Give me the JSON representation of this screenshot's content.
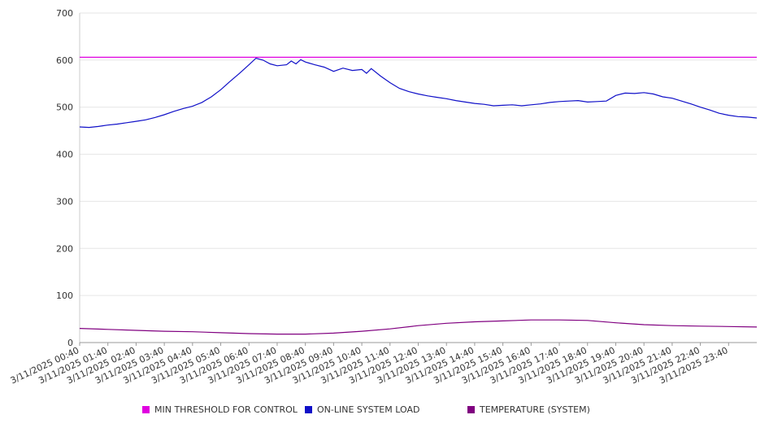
{
  "chart_data": {
    "type": "line",
    "title": "",
    "xlabel": "",
    "ylabel": "",
    "ylim": [
      0,
      700
    ],
    "yticks": [
      "0",
      "100",
      "200",
      "300",
      "400",
      "500",
      "600",
      "700"
    ],
    "grid": true,
    "legend_position": "bottom",
    "x_tick_labels": [
      "3/11/2025 00:40",
      "3/11/2025 01:40",
      "3/11/2025 02:40",
      "3/11/2025 03:40",
      "3/11/2025 04:40",
      "3/11/2025 05:40",
      "3/11/2025 06:40",
      "3/11/2025 07:40",
      "3/11/2025 08:40",
      "3/11/2025 09:40",
      "3/11/2025 10:40",
      "3/11/2025 11:40",
      "3/11/2025 12:40",
      "3/11/2025 13:40",
      "3/11/2025 14:40",
      "3/11/2025 15:40",
      "3/11/2025 16:40",
      "3/11/2025 17:40",
      "3/11/2025 18:40",
      "3/11/2025 19:40",
      "3/11/2025 20:40",
      "3/11/2025 21:40",
      "3/11/2025 22:40",
      "3/11/2025 23:40"
    ],
    "x_range": [
      "3/11/2025 00:40",
      "3/12/2025 00:40"
    ],
    "series": [
      {
        "name": "MIN THRESHOLD FOR CONTROL",
        "color": "#e000e0",
        "points": [
          [
            "3/11/2025 00:40",
            606
          ],
          [
            "3/12/2025 00:40",
            606
          ]
        ]
      },
      {
        "name": "ON-LINE SYSTEM LOAD",
        "color": "#1010c8",
        "points": [
          [
            "3/11/2025 00:40",
            458
          ],
          [
            "3/11/2025 01:00",
            457
          ],
          [
            "3/11/2025 01:20",
            459
          ],
          [
            "3/11/2025 01:40",
            462
          ],
          [
            "3/11/2025 02:00",
            464
          ],
          [
            "3/11/2025 02:20",
            467
          ],
          [
            "3/11/2025 02:40",
            470
          ],
          [
            "3/11/2025 03:00",
            473
          ],
          [
            "3/11/2025 03:20",
            478
          ],
          [
            "3/11/2025 03:40",
            484
          ],
          [
            "3/11/2025 04:00",
            491
          ],
          [
            "3/11/2025 04:20",
            497
          ],
          [
            "3/11/2025 04:40",
            502
          ],
          [
            "3/11/2025 05:00",
            510
          ],
          [
            "3/11/2025 05:20",
            522
          ],
          [
            "3/11/2025 05:40",
            537
          ],
          [
            "3/11/2025 06:00",
            555
          ],
          [
            "3/11/2025 06:20",
            572
          ],
          [
            "3/11/2025 06:40",
            590
          ],
          [
            "3/11/2025 06:55",
            604
          ],
          [
            "3/11/2025 07:10",
            600
          ],
          [
            "3/11/2025 07:25",
            592
          ],
          [
            "3/11/2025 07:40",
            588
          ],
          [
            "3/11/2025 08:00",
            590
          ],
          [
            "3/11/2025 08:10",
            598
          ],
          [
            "3/11/2025 08:20",
            592
          ],
          [
            "3/11/2025 08:30",
            601
          ],
          [
            "3/11/2025 08:40",
            596
          ],
          [
            "3/11/2025 09:00",
            590
          ],
          [
            "3/11/2025 09:20",
            585
          ],
          [
            "3/11/2025 09:40",
            576
          ],
          [
            "3/11/2025 10:00",
            583
          ],
          [
            "3/11/2025 10:20",
            578
          ],
          [
            "3/11/2025 10:40",
            580
          ],
          [
            "3/11/2025 10:50",
            572
          ],
          [
            "3/11/2025 11:00",
            582
          ],
          [
            "3/11/2025 11:20",
            566
          ],
          [
            "3/11/2025 11:40",
            552
          ],
          [
            "3/11/2025 12:00",
            540
          ],
          [
            "3/11/2025 12:20",
            533
          ],
          [
            "3/11/2025 12:40",
            528
          ],
          [
            "3/11/2025 13:00",
            524
          ],
          [
            "3/11/2025 13:20",
            521
          ],
          [
            "3/11/2025 13:40",
            518
          ],
          [
            "3/11/2025 14:00",
            514
          ],
          [
            "3/11/2025 14:20",
            511
          ],
          [
            "3/11/2025 14:40",
            508
          ],
          [
            "3/11/2025 15:00",
            506
          ],
          [
            "3/11/2025 15:20",
            503
          ],
          [
            "3/11/2025 15:40",
            504
          ],
          [
            "3/11/2025 16:00",
            505
          ],
          [
            "3/11/2025 16:20",
            503
          ],
          [
            "3/11/2025 16:40",
            505
          ],
          [
            "3/11/2025 17:00",
            507
          ],
          [
            "3/11/2025 17:20",
            510
          ],
          [
            "3/11/2025 17:40",
            512
          ],
          [
            "3/11/2025 18:00",
            513
          ],
          [
            "3/11/2025 18:20",
            514
          ],
          [
            "3/11/2025 18:40",
            511
          ],
          [
            "3/11/2025 19:00",
            512
          ],
          [
            "3/11/2025 19:20",
            513
          ],
          [
            "3/11/2025 19:40",
            525
          ],
          [
            "3/11/2025 20:00",
            530
          ],
          [
            "3/11/2025 20:20",
            529
          ],
          [
            "3/11/2025 20:40",
            531
          ],
          [
            "3/11/2025 21:00",
            528
          ],
          [
            "3/11/2025 21:20",
            522
          ],
          [
            "3/11/2025 21:40",
            519
          ],
          [
            "3/11/2025 22:00",
            513
          ],
          [
            "3/11/2025 22:20",
            507
          ],
          [
            "3/11/2025 22:40",
            500
          ],
          [
            "3/11/2025 23:00",
            494
          ],
          [
            "3/11/2025 23:20",
            487
          ],
          [
            "3/11/2025 23:40",
            483
          ],
          [
            "3/12/2025 00:00",
            480
          ],
          [
            "3/12/2025 00:20",
            479
          ],
          [
            "3/12/2025 00:40",
            477
          ]
        ]
      },
      {
        "name": "TEMPERATURE (SYSTEM)",
        "color": "#800080",
        "points": [
          [
            "3/11/2025 00:40",
            30
          ],
          [
            "3/11/2025 01:40",
            28
          ],
          [
            "3/11/2025 02:40",
            26
          ],
          [
            "3/11/2025 03:40",
            24
          ],
          [
            "3/11/2025 04:40",
            23
          ],
          [
            "3/11/2025 05:40",
            21
          ],
          [
            "3/11/2025 06:40",
            19
          ],
          [
            "3/11/2025 07:40",
            18
          ],
          [
            "3/11/2025 08:40",
            18
          ],
          [
            "3/11/2025 09:40",
            20
          ],
          [
            "3/11/2025 10:40",
            24
          ],
          [
            "3/11/2025 11:40",
            29
          ],
          [
            "3/11/2025 12:40",
            36
          ],
          [
            "3/11/2025 13:40",
            41
          ],
          [
            "3/11/2025 14:40",
            44
          ],
          [
            "3/11/2025 15:40",
            46
          ],
          [
            "3/11/2025 16:40",
            48
          ],
          [
            "3/11/2025 17:40",
            48
          ],
          [
            "3/11/2025 18:40",
            47
          ],
          [
            "3/11/2025 19:40",
            42
          ],
          [
            "3/11/2025 20:40",
            38
          ],
          [
            "3/11/2025 21:40",
            36
          ],
          [
            "3/11/2025 22:40",
            35
          ],
          [
            "3/11/2025 23:40",
            34
          ],
          [
            "3/12/2025 00:40",
            33
          ]
        ]
      }
    ]
  }
}
